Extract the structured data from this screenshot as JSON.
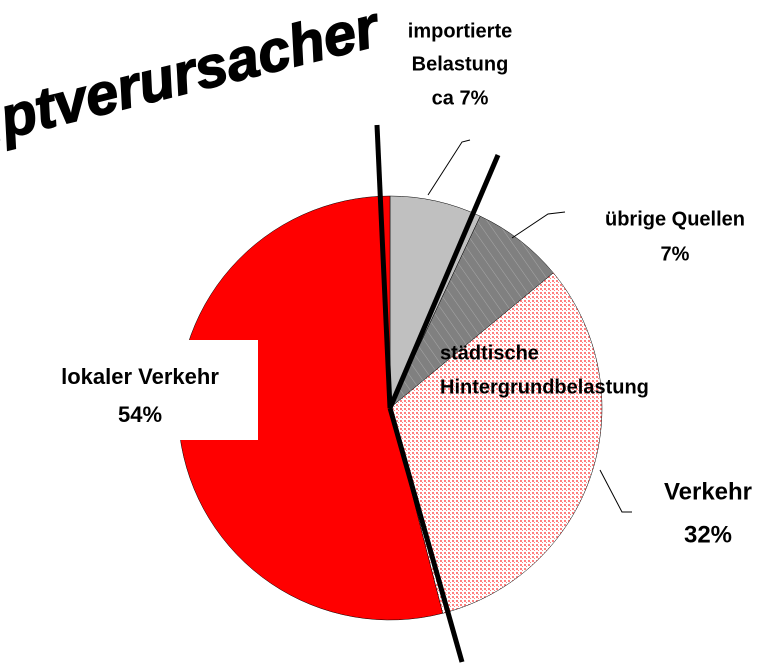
{
  "chart_data": {
    "type": "pie",
    "title": "Hauptverursacher",
    "categories": [
      [
        "importierte",
        "Belastung"
      ],
      [
        "übrige Quellen"
      ],
      [
        "Verkehr"
      ],
      [
        "lokaler Verkehr"
      ]
    ],
    "values": [
      7,
      7,
      32,
      54
    ],
    "value_labels": [
      "ca 7%",
      "7%",
      "32%",
      "54%"
    ],
    "colors": [
      "#c0c0c0",
      "#808080",
      "#ff8080",
      "#ff0000"
    ],
    "patterns": [
      "solid",
      "hatch",
      "dots",
      "solid"
    ],
    "annotation": [
      "städtische",
      "Hintergrundbelastung"
    ]
  }
}
